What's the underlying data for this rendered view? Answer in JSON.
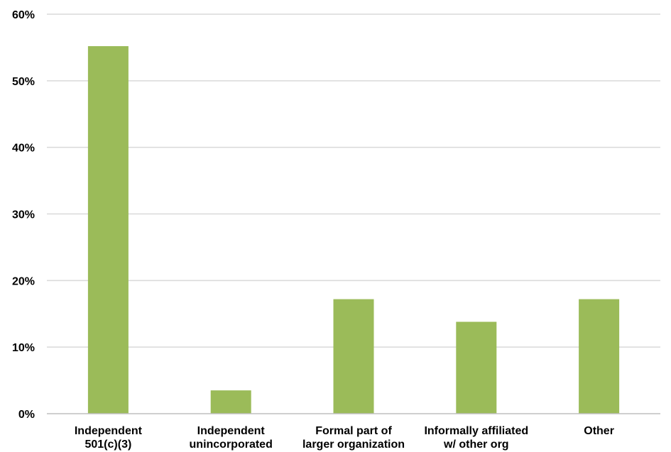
{
  "chart_data": {
    "type": "bar",
    "categories": [
      [
        "Independent",
        "501(c)(3)"
      ],
      [
        "Independent",
        "unincorporated"
      ],
      [
        "Formal part of",
        "larger organization"
      ],
      [
        "Informally affiliated",
        "w/ other org"
      ],
      [
        "Other"
      ]
    ],
    "series": [
      {
        "values": [
          55.2,
          3.5,
          17.2,
          13.8,
          17.2
        ],
        "color": "#9BBB59"
      }
    ],
    "ylim": [
      0,
      60
    ],
    "yticks": [
      0,
      10,
      20,
      30,
      40,
      50,
      60
    ],
    "ytick_labels": [
      "0%",
      "10%",
      "20%",
      "30%",
      "40%",
      "50%",
      "60%"
    ],
    "grid": "horizontal",
    "gridline_color": "#D9D9D9",
    "axis_color": "#BFBFBF",
    "title": "",
    "xlabel": "",
    "ylabel": ""
  }
}
